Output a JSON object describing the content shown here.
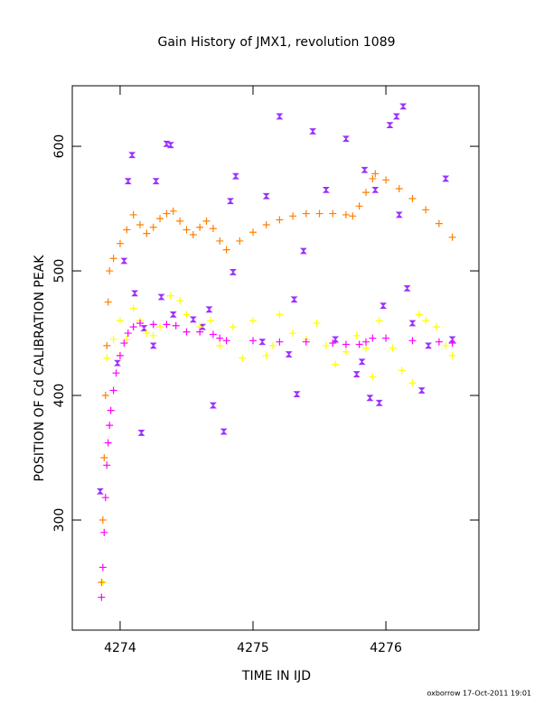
{
  "chart_data": {
    "type": "scatter",
    "title": "Gain History of JMX1, revolution 1089",
    "x_label": "TIME IN IJD",
    "y_label": "POSITION OF Cd CALIBRATION PEAK",
    "footer": "oxborrow 17-Oct-2011 19:01",
    "xlim": [
      4273.64,
      4276.7
    ],
    "ylim": [
      211.6,
      648.6
    ],
    "xticks": [
      4274,
      4275,
      4276
    ],
    "yticks": [
      300,
      400,
      500,
      600
    ],
    "series": [
      {
        "color": "#9b30ff",
        "marker": "bowtie",
        "x": [
          4273.85,
          4273.98,
          4274.03,
          4274.06,
          4274.09,
          4274.11,
          4274.16,
          4274.18,
          4274.25,
          4274.27,
          4274.31,
          4274.35,
          4274.38,
          4274.4,
          4274.55,
          4274.62,
          4274.67,
          4274.7,
          4274.78,
          4274.83,
          4274.87,
          4274.85,
          4275.07,
          4275.1,
          4275.2,
          4275.27,
          4275.31,
          4275.33,
          4275.38,
          4275.45,
          4275.55,
          4275.62,
          4275.7,
          4275.78,
          4275.82,
          4275.84,
          4275.88,
          4275.92,
          4275.95,
          4275.98,
          4276.03,
          4276.08,
          4276.1,
          4276.13,
          4276.16,
          4276.2,
          4276.27,
          4276.32,
          4276.45,
          4276.5
        ],
        "values": [
          323,
          426,
          508,
          572,
          593,
          482,
          370,
          454,
          440,
          572,
          479,
          602,
          601,
          465,
          461,
          455,
          469,
          392,
          371,
          556,
          576,
          499,
          443,
          560,
          624,
          433,
          477,
          401,
          516,
          612,
          565,
          445,
          606,
          417,
          427,
          581,
          398,
          565,
          394,
          472,
          617,
          624,
          545,
          632,
          486,
          458,
          404,
          440,
          574,
          445
        ]
      },
      {
        "color": "#ffff00",
        "marker": "plus",
        "x": [
          4273.87,
          4273.9,
          4273.95,
          4274.0,
          4274.05,
          4274.1,
          4274.15,
          4274.2,
          4274.25,
          4274.3,
          4274.38,
          4274.45,
          4274.5,
          4274.6,
          4274.68,
          4274.75,
          4274.85,
          4274.92,
          4275.0,
          4275.1,
          4275.15,
          4275.2,
          4275.3,
          4275.4,
          4275.48,
          4275.55,
          4275.62,
          4275.7,
          4275.78,
          4275.85,
          4275.9,
          4275.95,
          4276.05,
          4276.12,
          4276.2,
          4276.25,
          4276.3,
          4276.38,
          4276.45,
          4276.5
        ],
        "values": [
          250,
          430,
          445,
          460,
          445,
          470,
          460,
          450,
          448,
          455,
          480,
          476,
          465,
          455,
          460,
          440,
          455,
          430,
          460,
          432,
          440,
          465,
          450,
          445,
          458,
          440,
          425,
          435,
          448,
          438,
          415,
          460,
          438,
          420,
          410,
          465,
          460,
          455,
          440,
          432
        ]
      },
      {
        "color": "#ff7f00",
        "marker": "plus",
        "x": [
          4273.86,
          4273.87,
          4273.88,
          4273.89,
          4273.9,
          4273.91,
          4273.92,
          4273.95,
          4274.0,
          4274.05,
          4274.1,
          4274.15,
          4274.2,
          4274.25,
          4274.3,
          4274.35,
          4274.4,
          4274.45,
          4274.5,
          4274.55,
          4274.6,
          4274.65,
          4274.7,
          4274.75,
          4274.8,
          4274.9,
          4275.0,
          4275.1,
          4275.2,
          4275.3,
          4275.4,
          4275.5,
          4275.6,
          4275.7,
          4275.75,
          4275.8,
          4275.85,
          4275.9,
          4275.92,
          4276.0,
          4276.1,
          4276.2,
          4276.3,
          4276.4,
          4276.5
        ],
        "values": [
          250,
          300,
          350,
          400,
          440,
          475,
          500,
          510,
          522,
          533,
          545,
          537,
          530,
          535,
          542,
          546,
          548,
          540,
          533,
          529,
          535,
          540,
          534,
          524,
          517,
          524,
          531,
          537,
          541,
          544,
          546,
          546,
          546,
          545,
          544,
          552,
          563,
          574,
          578,
          573,
          566,
          558,
          549,
          538,
          527
        ]
      },
      {
        "color": "#ff00ff",
        "marker": "plus",
        "x": [
          4273.86,
          4273.87,
          4273.88,
          4273.89,
          4273.9,
          4273.91,
          4273.92,
          4273.93,
          4273.95,
          4273.97,
          4274.0,
          4274.03,
          4274.06,
          4274.1,
          4274.15,
          4274.25,
          4274.35,
          4274.42,
          4274.5,
          4274.6,
          4274.7,
          4274.75,
          4274.8,
          4275.0,
          4275.2,
          4275.4,
          4275.6,
          4275.7,
          4275.8,
          4275.85,
          4275.9,
          4276.0,
          4276.2,
          4276.4,
          4276.5
        ],
        "values": [
          238,
          262,
          290,
          318,
          344,
          362,
          376,
          388,
          404,
          418,
          432,
          442,
          450,
          455,
          458,
          457,
          457,
          456,
          451,
          451,
          449,
          446,
          444,
          444,
          443,
          443,
          442,
          441,
          441,
          443,
          446,
          446,
          444,
          443,
          442
        ]
      }
    ]
  }
}
